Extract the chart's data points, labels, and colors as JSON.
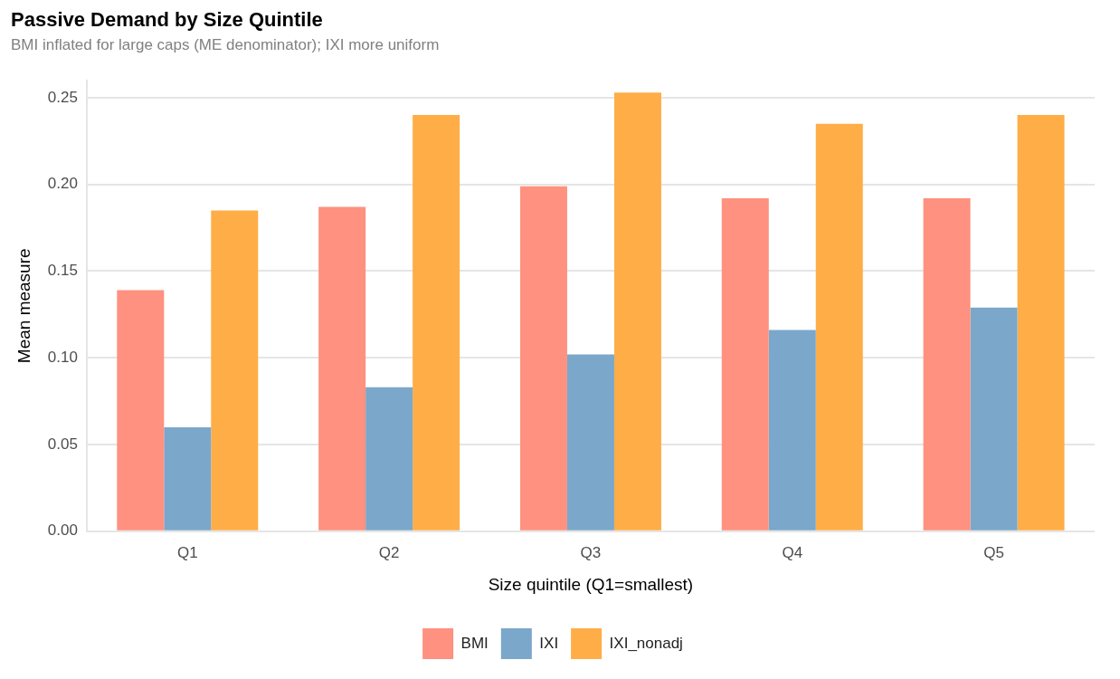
{
  "chart_data": {
    "type": "bar",
    "title": "Passive Demand by Size Quintile",
    "subtitle": "BMI inflated for large caps (ME denominator); IXI more uniform",
    "xlabel": "Size quintile (Q1=smallest)",
    "ylabel": "Mean measure",
    "categories": [
      "Q1",
      "Q2",
      "Q3",
      "Q4",
      "Q5"
    ],
    "series": [
      {
        "name": "BMI",
        "color": "#fe917f",
        "values": [
          0.139,
          0.187,
          0.199,
          0.192,
          0.192
        ]
      },
      {
        "name": "IXI",
        "color": "#7aa7ca",
        "values": [
          0.06,
          0.083,
          0.102,
          0.116,
          0.129
        ]
      },
      {
        "name": "IXI_nonadj",
        "color": "#ffad47",
        "values": [
          0.185,
          0.24,
          0.253,
          0.235,
          0.24
        ]
      }
    ],
    "ylim": [
      0,
      0.26
    ],
    "yticks": [
      {
        "value": 0,
        "label": "0.00"
      },
      {
        "value": 0.05,
        "label": "0.05"
      },
      {
        "value": 0.1,
        "label": "0.10"
      },
      {
        "value": 0.15,
        "label": "0.15"
      },
      {
        "value": 0.2,
        "label": "0.20"
      },
      {
        "value": 0.25,
        "label": "0.25"
      }
    ],
    "grid": "y",
    "legend": "bottom"
  }
}
